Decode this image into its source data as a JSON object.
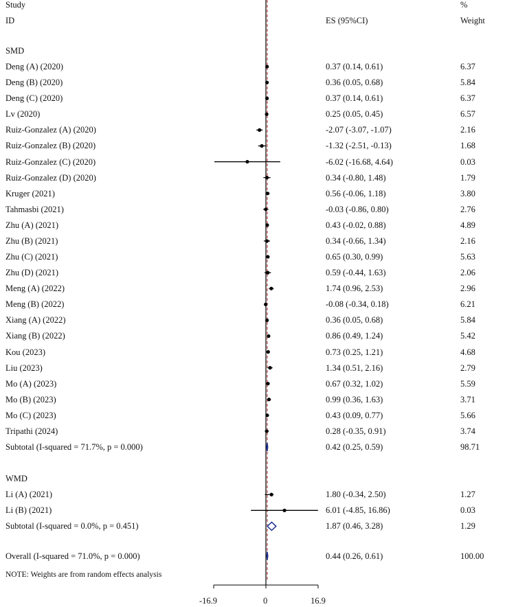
{
  "chart_data": {
    "type": "forest",
    "header": {
      "study_line1": "Study",
      "study_line2": "ID",
      "es_label": "ES (95%CI)",
      "weight_line1": "%",
      "weight_line2": "Weight"
    },
    "axis": {
      "min": -16.9,
      "max": 16.9,
      "null_value": 0,
      "tick_labels": [
        "-16.9",
        "0",
        "16.9"
      ]
    },
    "note": "NOTE: Weights are from random effects analysis",
    "groups": [
      {
        "label": "SMD",
        "studies": [
          {
            "name": "Deng (A) (2020)",
            "es": 0.37,
            "lo": 0.14,
            "hi": 0.61,
            "es_text": "0.37 (0.14, 0.61)",
            "weight": "6.37"
          },
          {
            "name": "Deng (B) (2020)",
            "es": 0.36,
            "lo": 0.05,
            "hi": 0.68,
            "es_text": "0.36 (0.05, 0.68)",
            "weight": "5.84"
          },
          {
            "name": "Deng (C) (2020)",
            "es": 0.37,
            "lo": 0.14,
            "hi": 0.61,
            "es_text": "0.37 (0.14, 0.61)",
            "weight": "6.37"
          },
          {
            "name": "Lv (2020)",
            "es": 0.25,
            "lo": 0.05,
            "hi": 0.45,
            "es_text": "0.25 (0.05, 0.45)",
            "weight": "6.57"
          },
          {
            "name": "Ruiz-Gonzalez (A) (2020)",
            "es": -2.07,
            "lo": -3.07,
            "hi": -1.07,
            "es_text": "-2.07 (-3.07, -1.07)",
            "weight": "2.16"
          },
          {
            "name": "Ruiz-Gonzalez (B) (2020)",
            "es": -1.32,
            "lo": -2.51,
            "hi": -0.13,
            "es_text": "-1.32 (-2.51, -0.13)",
            "weight": "1.68"
          },
          {
            "name": "Ruiz-Gonzalez (C) (2020)",
            "es": -6.02,
            "lo": -16.68,
            "hi": 4.64,
            "es_text": "-6.02 (-16.68, 4.64)",
            "weight": "0.03"
          },
          {
            "name": "Ruiz-Gonzalez (D) (2020)",
            "es": 0.34,
            "lo": -0.8,
            "hi": 1.48,
            "es_text": "0.34 (-0.80, 1.48)",
            "weight": "1.79"
          },
          {
            "name": "Kruger (2021)",
            "es": 0.56,
            "lo": -0.06,
            "hi": 1.18,
            "es_text": "0.56 (-0.06, 1.18)",
            "weight": "3.80"
          },
          {
            "name": "Tahmasbi (2021)",
            "es": -0.03,
            "lo": -0.86,
            "hi": 0.8,
            "es_text": "-0.03 (-0.86, 0.80)",
            "weight": "2.76"
          },
          {
            "name": "Zhu (A) (2021)",
            "es": 0.43,
            "lo": -0.02,
            "hi": 0.88,
            "es_text": "0.43 (-0.02, 0.88)",
            "weight": "4.89"
          },
          {
            "name": "Zhu (B) (2021)",
            "es": 0.34,
            "lo": -0.66,
            "hi": 1.34,
            "es_text": "0.34 (-0.66, 1.34)",
            "weight": "2.16"
          },
          {
            "name": "Zhu (C) (2021)",
            "es": 0.65,
            "lo": 0.3,
            "hi": 0.99,
            "es_text": "0.65 (0.30, 0.99)",
            "weight": "5.63"
          },
          {
            "name": "Zhu (D) (2021)",
            "es": 0.59,
            "lo": -0.44,
            "hi": 1.63,
            "es_text": "0.59 (-0.44, 1.63)",
            "weight": "2.06"
          },
          {
            "name": "Meng (A) (2022)",
            "es": 1.74,
            "lo": 0.96,
            "hi": 2.53,
            "es_text": "1.74 (0.96, 2.53)",
            "weight": "2.96"
          },
          {
            "name": "Meng (B) (2022)",
            "es": -0.08,
            "lo": -0.34,
            "hi": 0.18,
            "es_text": "-0.08 (-0.34, 0.18)",
            "weight": "6.21"
          },
          {
            "name": "Xiang (A) (2022)",
            "es": 0.36,
            "lo": 0.05,
            "hi": 0.68,
            "es_text": "0.36 (0.05, 0.68)",
            "weight": "5.84"
          },
          {
            "name": "Xiang (B) (2022)",
            "es": 0.86,
            "lo": 0.49,
            "hi": 1.24,
            "es_text": "0.86 (0.49, 1.24)",
            "weight": "5.42"
          },
          {
            "name": "Kou (2023)",
            "es": 0.73,
            "lo": 0.25,
            "hi": 1.21,
            "es_text": "0.73 (0.25, 1.21)",
            "weight": "4.68"
          },
          {
            "name": "Liu (2023)",
            "es": 1.34,
            "lo": 0.51,
            "hi": 2.16,
            "es_text": "1.34 (0.51, 2.16)",
            "weight": "2.79"
          },
          {
            "name": "Mo (A) (2023)",
            "es": 0.67,
            "lo": 0.32,
            "hi": 1.02,
            "es_text": "0.67 (0.32, 1.02)",
            "weight": "5.59"
          },
          {
            "name": "Mo (B) (2023)",
            "es": 0.99,
            "lo": 0.36,
            "hi": 1.63,
            "es_text": "0.99 (0.36, 1.63)",
            "weight": "3.71"
          },
          {
            "name": "Mo (C) (2023)",
            "es": 0.43,
            "lo": 0.09,
            "hi": 0.77,
            "es_text": "0.43 (0.09, 0.77)",
            "weight": "5.66"
          },
          {
            "name": "Tripathi (2024)",
            "es": 0.28,
            "lo": -0.35,
            "hi": 0.91,
            "es_text": "0.28 (-0.35, 0.91)",
            "weight": "3.74"
          }
        ],
        "subtotal": {
          "label": "Subtotal  (I-squared = 71.7%, p = 0.000)",
          "es": 0.42,
          "lo": 0.25,
          "hi": 0.59,
          "es_text": "0.42 (0.25, 0.59)",
          "weight": "98.71"
        }
      },
      {
        "label": "WMD",
        "studies": [
          {
            "name": "Li (A) (2021)",
            "es": 1.8,
            "lo": -0.34,
            "hi": 2.5,
            "es_text": "1.80 (-0.34, 2.50)",
            "weight": "1.27"
          },
          {
            "name": "Li (B) (2021)",
            "es": 6.01,
            "lo": -4.85,
            "hi": 16.86,
            "es_text": "6.01 (-4.85, 16.86)",
            "weight": "0.03"
          }
        ],
        "subtotal": {
          "label": "Subtotal  (I-squared = 0.0%, p = 0.451)",
          "es": 1.87,
          "lo": 0.46,
          "hi": 3.28,
          "es_text": "1.87 (0.46, 3.28)",
          "weight": "1.29"
        }
      }
    ],
    "overall": {
      "label": "Overall  (I-squared = 71.0%, p = 0.000)",
      "es": 0.44,
      "lo": 0.26,
      "hi": 0.61,
      "es_text": "0.44 (0.26, 0.61)",
      "weight": "100.00"
    },
    "colors": {
      "ci_line": "#000000",
      "point": "#000000",
      "null_line": "#000000",
      "pooled_line": "#b22222",
      "diamond": "#1f2f8f"
    }
  }
}
